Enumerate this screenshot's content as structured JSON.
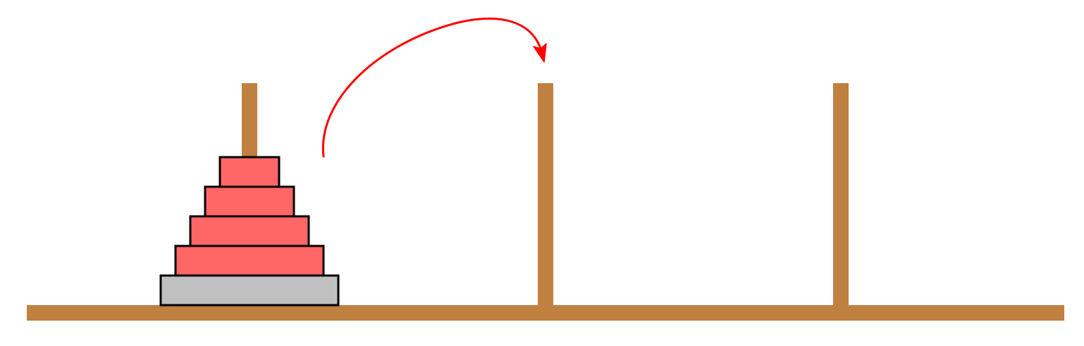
{
  "colors": {
    "background": "#ffffff",
    "wood": "#c08040",
    "disk": "#ff6666",
    "base_disk": "#c0c0c0",
    "outline": "#000000",
    "arrow": "#ff0000"
  },
  "pegs": [
    {
      "id": "peg-1"
    },
    {
      "id": "peg-2"
    },
    {
      "id": "peg-3"
    }
  ],
  "disks": [
    {
      "id": "disk-1",
      "size": 1,
      "peg": 1,
      "color": "#ff6666"
    },
    {
      "id": "disk-2",
      "size": 2,
      "peg": 1,
      "color": "#ff6666"
    },
    {
      "id": "disk-3",
      "size": 3,
      "peg": 1,
      "color": "#ff6666"
    },
    {
      "id": "disk-4",
      "size": 4,
      "peg": 1,
      "color": "#ff6666"
    },
    {
      "id": "disk-5",
      "size": 5,
      "peg": 1,
      "color": "#c0c0c0"
    }
  ],
  "move_arrow": {
    "from_peg": 1,
    "to_peg": 2,
    "color": "#ff0000"
  }
}
